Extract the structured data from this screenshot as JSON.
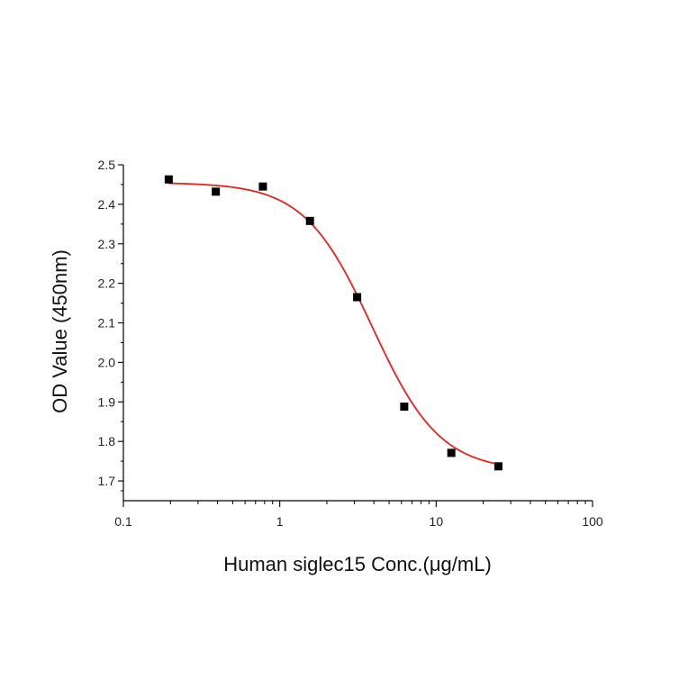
{
  "chart_data": {
    "type": "scatter",
    "title": "",
    "xlabel": "Human siglec15 Conc.(μg/mL)",
    "ylabel": "OD Value (450nm)",
    "x_scale": "log",
    "xlim": [
      0.1,
      100
    ],
    "ylim": [
      1.65,
      2.5
    ],
    "x_ticks": [
      0.1,
      1,
      10,
      100
    ],
    "x_tick_labels": [
      "0.1",
      "1",
      "10",
      "100"
    ],
    "y_ticks": [
      1.7,
      1.8,
      1.9,
      2.0,
      2.1,
      2.2,
      2.3,
      2.4,
      2.5
    ],
    "y_tick_labels": [
      "1.7",
      "1.8",
      "1.9",
      "2.0",
      "2.1",
      "2.2",
      "2.3",
      "2.4",
      "2.5"
    ],
    "grid": false,
    "legend": "none",
    "series": [
      {
        "kind": "points",
        "color": "#000000",
        "marker": "square",
        "x": [
          0.195,
          0.39,
          0.78,
          1.56,
          3.125,
          6.25,
          12.5,
          25
        ],
        "y": [
          2.463,
          2.432,
          2.445,
          2.358,
          2.165,
          1.888,
          1.771,
          1.737
        ]
      },
      {
        "kind": "fit",
        "color": "#e8231c",
        "model": "4PL",
        "top": 2.455,
        "bottom": 1.725,
        "ec50": 3.9,
        "hill": 2.0,
        "x_range": [
          0.195,
          25
        ]
      }
    ]
  }
}
